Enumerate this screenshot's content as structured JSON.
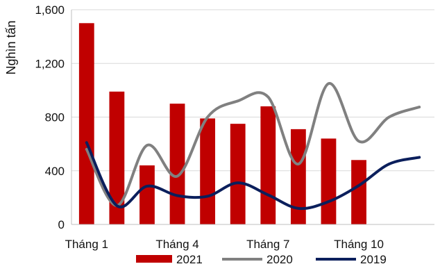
{
  "chart_data": {
    "type": "bar",
    "ylabel": "Nghìn tấn",
    "ylim": [
      0,
      1600
    ],
    "yticks": [
      "0",
      "400",
      "800",
      "1,200",
      "1,600"
    ],
    "ytick_values": [
      0,
      400,
      800,
      1200,
      1600
    ],
    "categories": [
      "Tháng 1",
      "",
      "",
      "Tháng 4",
      "",
      "",
      "Tháng 7",
      "",
      "",
      "Tháng 10",
      "",
      ""
    ],
    "xtick_labels": [
      {
        "index": 0,
        "label": "Tháng 1"
      },
      {
        "index": 3,
        "label": "Tháng 4"
      },
      {
        "index": 6,
        "label": "Tháng 7"
      },
      {
        "index": 9,
        "label": "Tháng 10"
      }
    ],
    "grid": "horizontal",
    "legend_position": "bottom",
    "series": [
      {
        "name": "2021",
        "type": "bar",
        "color": "#c00000",
        "values": [
          1500,
          990,
          440,
          900,
          790,
          750,
          880,
          710,
          640,
          480,
          null,
          null
        ]
      },
      {
        "name": "2020",
        "type": "line",
        "color": "#808080",
        "values": [
          560,
          140,
          590,
          360,
          800,
          920,
          950,
          450,
          1050,
          620,
          800,
          875
        ]
      },
      {
        "name": "2019",
        "type": "line",
        "color": "#0b1f5c",
        "values": [
          610,
          140,
          285,
          215,
          210,
          310,
          220,
          120,
          170,
          290,
          450,
          500
        ]
      }
    ]
  }
}
